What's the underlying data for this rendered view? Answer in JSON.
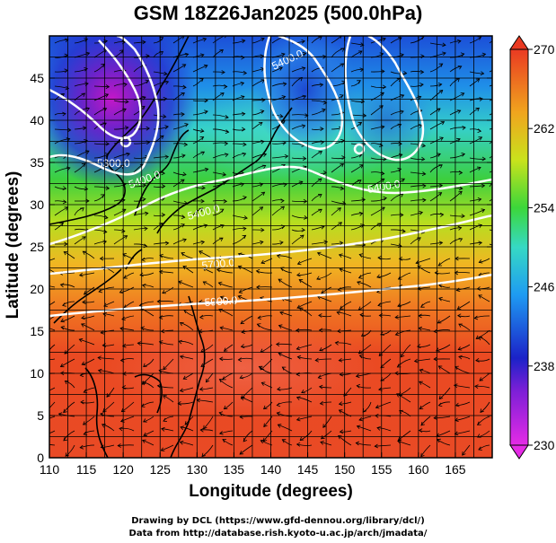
{
  "title": "GSM 18Z26Jan2025 (500.0hPa)",
  "axes": {
    "xlabel": "Longitude (degrees)",
    "ylabel": "Latitude  (degrees)",
    "xticks": [
      "110",
      "115",
      "120",
      "125",
      "130",
      "135",
      "140",
      "145",
      "150",
      "155",
      "160",
      "165"
    ],
    "yticks": [
      "0",
      "5",
      "10",
      "15",
      "20",
      "25",
      "30",
      "35",
      "40",
      "45"
    ]
  },
  "colorbar": {
    "ticks": [
      "230",
      "238",
      "246",
      "254",
      "262",
      "270"
    ],
    "stops": [
      "#e52be6",
      "#1b22c8",
      "#1e9bf2",
      "#36d9c4",
      "#3cd73a",
      "#c9e21c",
      "#f0a51e",
      "#ea3a22"
    ]
  },
  "contours": [
    {
      "label": "5300.0"
    },
    {
      "label": "5400.0"
    },
    {
      "label": "5400.0"
    },
    {
      "label": "5400.0"
    },
    {
      "label": "5400.0"
    },
    {
      "label": "5700.0"
    },
    {
      "label": "5900.0"
    }
  ],
  "credits": {
    "line1": "Drawing by DCL (https://www.gfd-dennou.org/library/dcl/)",
    "line2": "Data from http://database.rish.kyoto-u.ac.jp/arch/jmadata/"
  },
  "chart_data": {
    "type": "heatmap",
    "title": "GSM 18Z26Jan2025 (500.0hPa)",
    "xlabel": "Longitude (degrees)",
    "ylabel": "Latitude  (degrees)",
    "xlim": [
      110,
      170
    ],
    "ylim": [
      0,
      50
    ],
    "color_range": [
      230,
      270
    ],
    "color_ticks": [
      230,
      238,
      246,
      254,
      262,
      270
    ],
    "contour_levels": [
      5300,
      5400,
      5700,
      5900
    ]
  }
}
